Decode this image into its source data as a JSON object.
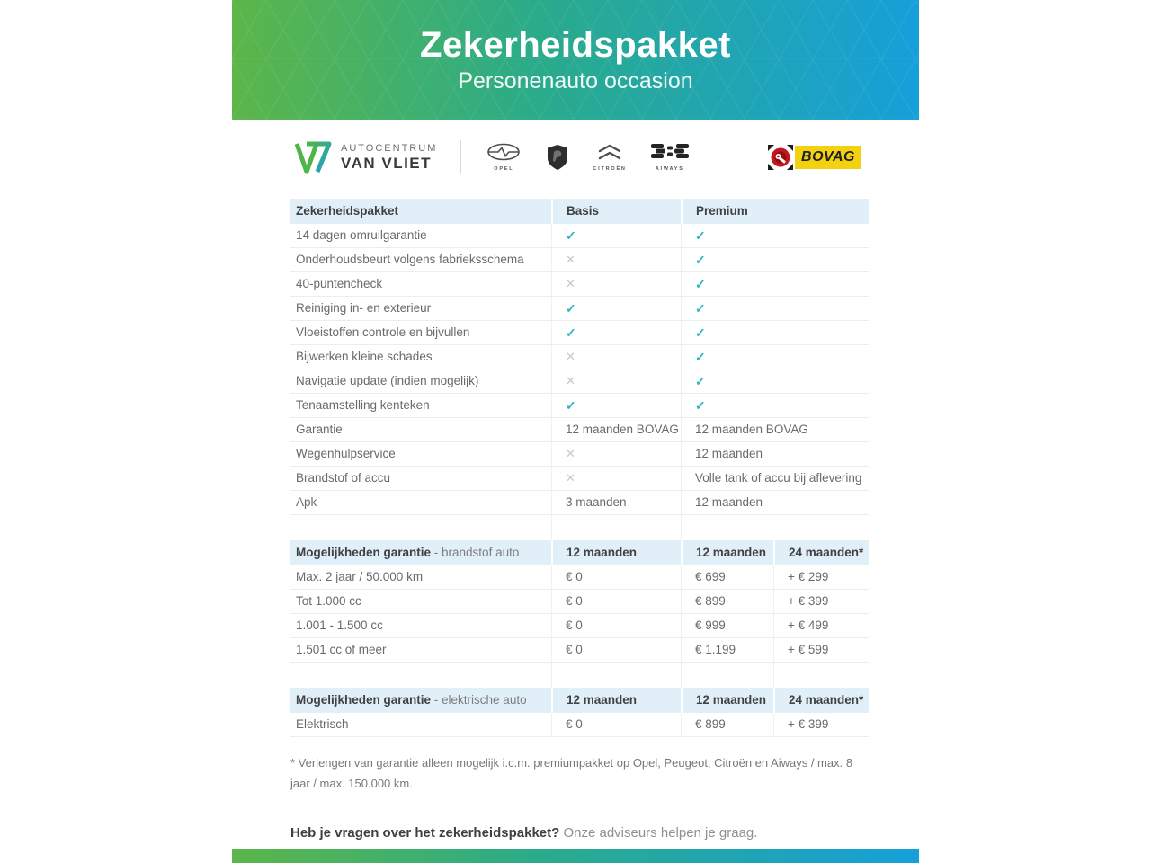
{
  "banner": {
    "title": "Zekerheidspakket",
    "subtitle": "Personenauto occasion"
  },
  "logos": {
    "dealer": {
      "line1": "AUTOCENTRUM",
      "line2": "VAN VLIET"
    },
    "brands": [
      {
        "name": "opel",
        "label": "OPEL"
      },
      {
        "name": "peugeot",
        "label": ""
      },
      {
        "name": "citroen",
        "label": "CITROËN"
      },
      {
        "name": "aiways",
        "label": "AIWAYS"
      }
    ],
    "bovag": "BOVAG"
  },
  "colors": {
    "gradient_green": "#5cb649",
    "gradient_blue": "#169fda",
    "header_band": "#e1eff8",
    "check": "#2fb4c5",
    "cross": "#c4c8ca",
    "bovag_yellow": "#f2d111",
    "bovag_red": "#c4161c"
  },
  "table1": {
    "headers": [
      "Zekerheidspakket",
      "Basis",
      "Premium"
    ],
    "rows": [
      [
        "14 dagen omruilgarantie",
        "check",
        "check"
      ],
      [
        "Onderhoudsbeurt volgens fabrieksschema",
        "cross",
        "check"
      ],
      [
        "40-puntencheck",
        "cross",
        "check"
      ],
      [
        "Reiniging in- en exterieur",
        "check",
        "check"
      ],
      [
        "Vloeistoffen controle en bijvullen",
        "check",
        "check"
      ],
      [
        "Bijwerken kleine schades",
        "cross",
        "check"
      ],
      [
        "Navigatie update (indien mogelijk)",
        "cross",
        "check"
      ],
      [
        "Tenaamstelling kenteken",
        "check",
        "check"
      ],
      [
        "Garantie",
        "12 maanden BOVAG",
        "12 maanden BOVAG"
      ],
      [
        "Wegenhulpservice",
        "cross",
        "12 maanden"
      ],
      [
        "Brandstof of accu",
        "cross",
        "Volle tank of accu bij aflevering"
      ],
      [
        "Apk",
        "3 maanden",
        "12 maanden"
      ]
    ]
  },
  "table2": {
    "title_bold": "Mogelijkheden garantie",
    "title_rest": " - brandstof auto",
    "headers": [
      "12 maanden",
      "12 maanden",
      "24 maanden*"
    ],
    "rows": [
      [
        "Max. 2 jaar / 50.000 km",
        "€ 0",
        "€ 699",
        "+ € 299"
      ],
      [
        "Tot 1.000 cc",
        "€ 0",
        "€ 899",
        "+ € 399"
      ],
      [
        "1.001 - 1.500 cc",
        "€ 0",
        "€ 999",
        "+ € 499"
      ],
      [
        "1.501 cc of meer",
        "€ 0",
        "€ 1.199",
        "+ € 599"
      ]
    ]
  },
  "table3": {
    "title_bold": "Mogelijkheden garantie",
    "title_rest": " - elektrische auto",
    "headers": [
      "12 maanden",
      "12 maanden",
      "24 maanden*"
    ],
    "rows": [
      [
        "Elektrisch",
        "€ 0",
        "€ 899",
        "+ € 399"
      ]
    ]
  },
  "footnote": "* Verlengen van garantie alleen mogelijk i.c.m. premiumpakket op Opel, Peugeot, Citroën en Aiways / max. 8 jaar / max. 150.000 km.",
  "question": {
    "bold": "Heb je vragen over het zekerheidspakket?",
    "rest": " Onze adviseurs helpen je graag."
  }
}
